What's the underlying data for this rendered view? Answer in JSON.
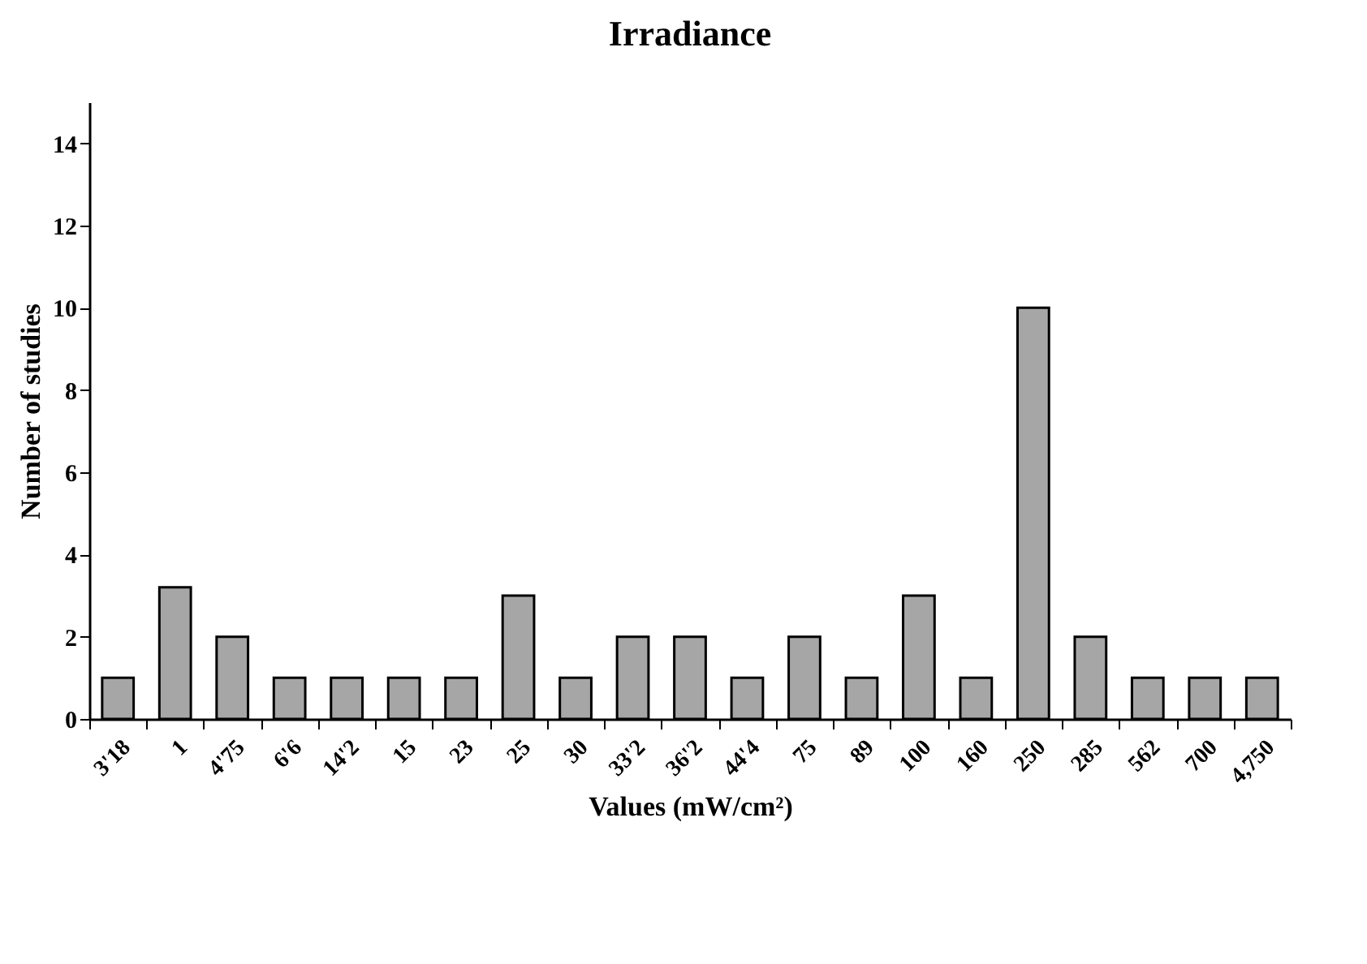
{
  "chart_data": {
    "type": "bar",
    "title": "Irradiance",
    "xlabel": "Values (mW/cm²)",
    "ylabel": "Number of studies",
    "categories": [
      "3'18",
      "1",
      "4'75",
      "6'6",
      "14'2",
      "15",
      "23",
      "25",
      "30",
      "33'2",
      "36'2",
      "44'4",
      "75",
      "89",
      "100",
      "160",
      "250",
      "285",
      "562",
      "700",
      "4,750"
    ],
    "values": [
      1,
      3.2,
      2,
      1,
      1,
      1,
      1,
      3,
      1,
      2,
      2,
      1,
      2,
      1,
      3,
      1,
      10,
      2,
      1,
      1,
      1
    ],
    "color": "#a6a6a6",
    "ylim": [
      0,
      15
    ],
    "yticks": [
      0,
      2,
      4,
      6,
      8,
      10,
      12,
      14
    ],
    "grid": false
  }
}
